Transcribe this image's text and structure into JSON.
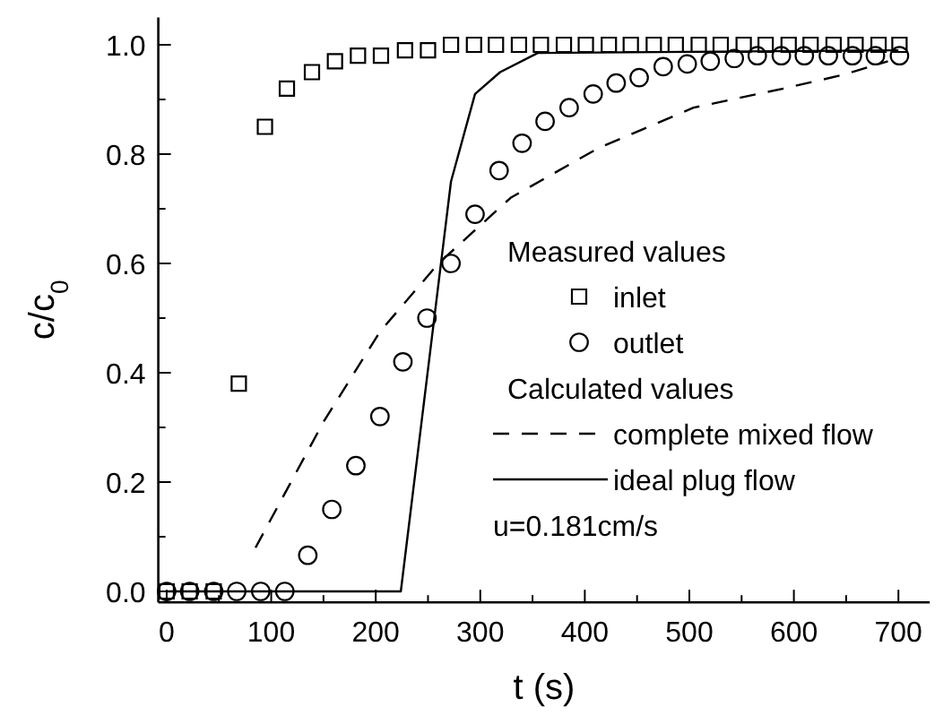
{
  "chart_data": {
    "type": "scatter",
    "xlabel": "t (s)",
    "ylabel": "c/c$_{0}$",
    "xlim": [
      -8,
      730
    ],
    "ylim": [
      -0.02,
      1.05
    ],
    "xticks": [
      0,
      {
        "value": 50,
        "label": null
      },
      100,
      {
        "value": 150,
        "label": null
      },
      200,
      {
        "value": 250,
        "label": null
      },
      300,
      {
        "value": 350,
        "label": null
      },
      400,
      {
        "value": 450,
        "label": null
      },
      500,
      {
        "value": 550,
        "label": null
      },
      600,
      {
        "value": 650,
        "label": null
      },
      700
    ],
    "yticks": [
      {
        "value": 0,
        "label": "0.0"
      },
      {
        "value": 0.1,
        "label": null
      },
      0.2,
      {
        "value": 0.3,
        "label": null
      },
      0.4,
      {
        "value": 0.5,
        "label": null
      },
      0.6,
      {
        "value": 0.7,
        "label": null
      },
      0.8,
      {
        "value": 0.9,
        "label": null
      },
      {
        "value": 1,
        "label": "1.0"
      }
    ],
    "grid": false,
    "legend": "right",
    "series": [
      {
        "name": "inlet",
        "marker": "square",
        "color": "#000000",
        "x": [
          0,
          22,
          45,
          69,
          94,
          115,
          139,
          161,
          183,
          205,
          228,
          250,
          272,
          294,
          315,
          337,
          358,
          380,
          401,
          423,
          444,
          466,
          487,
          509,
          530,
          552,
          573,
          595,
          616,
          638,
          659,
          681,
          701
        ],
        "values": [
          0,
          0,
          0,
          0.38,
          0.85,
          0.92,
          0.95,
          0.97,
          0.98,
          0.98,
          0.99,
          0.99,
          1,
          1,
          1,
          1,
          1,
          1,
          1,
          1,
          1,
          1,
          1,
          1,
          1,
          1,
          1,
          1,
          1,
          1,
          1,
          1,
          1
        ]
      },
      {
        "name": "outlet",
        "marker": "circle",
        "color": "#000000",
        "x": [
          0,
          22,
          45,
          67,
          90,
          113,
          135,
          158,
          181,
          204,
          226,
          249,
          272,
          295,
          318,
          340,
          362,
          385,
          408,
          430,
          452,
          475,
          498,
          520,
          543,
          565,
          588,
          610,
          633,
          656,
          678,
          701
        ],
        "values": [
          0,
          0,
          0,
          0,
          0,
          0,
          0.066,
          0.15,
          0.23,
          0.32,
          0.42,
          0.5,
          0.6,
          0.69,
          0.77,
          0.82,
          0.86,
          0.885,
          0.91,
          0.93,
          0.94,
          0.96,
          0.965,
          0.97,
          0.975,
          0.98,
          0.98,
          0.98,
          0.98,
          0.98,
          0.98,
          0.98
        ]
      },
      {
        "name": "complete mixed flow",
        "type": "line",
        "marker": "none",
        "line_style": "dashed",
        "color": "#000000",
        "x": [
          85,
          150,
          204,
          260,
          329,
          412,
          504,
          590,
          647,
          690
        ],
        "values": [
          0.08,
          0.31,
          0.475,
          0.6,
          0.72,
          0.81,
          0.885,
          0.92,
          0.945,
          0.97
        ]
      },
      {
        "name": "ideal plug flow",
        "type": "line",
        "marker": "none",
        "line_style": "solid",
        "color": "#000000",
        "x": [
          0,
          224,
          272,
          295,
          319,
          355,
          700
        ],
        "values": [
          0,
          0,
          0.75,
          0.91,
          0.95,
          0.985,
          0.99
        ]
      }
    ],
    "annotations": [
      "Measured values",
      "Calculated values",
      "u=0.181cm/s"
    ]
  }
}
